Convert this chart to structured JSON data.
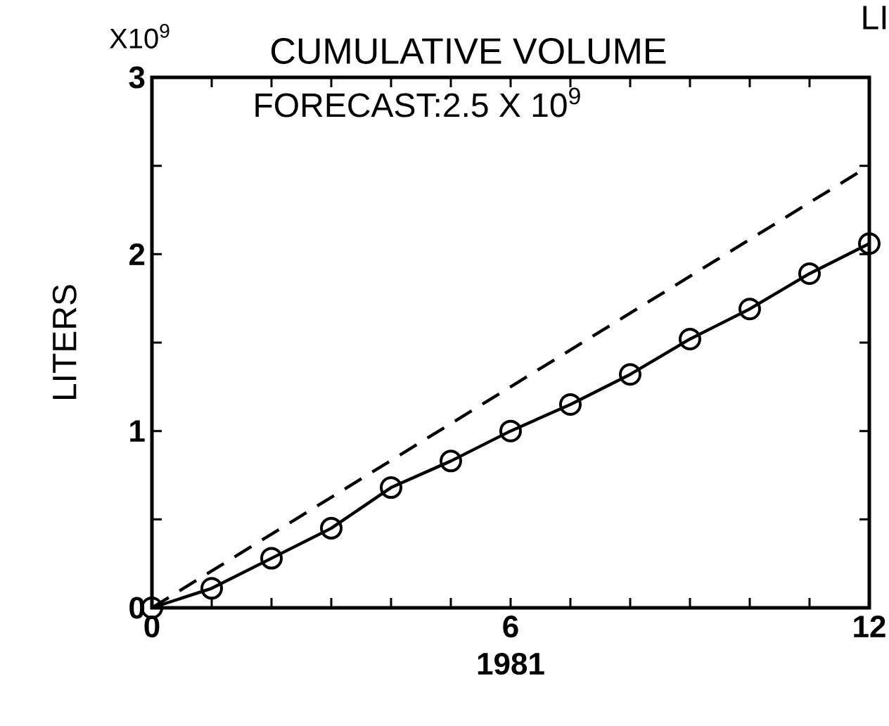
{
  "chart_data": {
    "type": "line",
    "title": "CUMULATIVE VOLUME",
    "xlabel": "1981",
    "ylabel": "LITERS",
    "annotations": [
      "X10$^{9}$",
      "FORECAST:2.5 X 10$^{9}$",
      "LI"
    ],
    "x": [
      0,
      1,
      2,
      3,
      4,
      5,
      6,
      7,
      8,
      9,
      10,
      11,
      12
    ],
    "series": [
      {
        "color": "#000000",
        "marker": "circle",
        "line_style": "solid",
        "values": [
          0,
          0.11,
          0.28,
          0.45,
          0.68,
          0.83,
          1.0,
          1.15,
          1.32,
          1.52,
          1.69,
          1.89,
          2.06
        ]
      },
      {
        "color": "#000000",
        "marker": "none",
        "line_style": "dashed",
        "x": [
          0,
          12
        ],
        "values": [
          0,
          2.5
        ]
      }
    ],
    "xlim": [
      0,
      12
    ],
    "ylim": [
      0,
      3
    ],
    "xticks": [
      0,
      {
        "value": 1,
        "label": null
      },
      {
        "value": 2,
        "label": null
      },
      {
        "value": 3,
        "label": null
      },
      {
        "value": 4,
        "label": null
      },
      {
        "value": 5,
        "label": null
      },
      6,
      {
        "value": 7,
        "label": null
      },
      {
        "value": 8,
        "label": null
      },
      {
        "value": 9,
        "label": null
      },
      {
        "value": 10,
        "label": null
      },
      {
        "value": 11,
        "label": null
      },
      12
    ],
    "yticks": [
      0,
      {
        "value": 0.5,
        "label": null
      },
      1,
      {
        "value": 1.5,
        "label": null
      },
      2,
      {
        "value": 2.5,
        "label": null
      },
      3
    ],
    "grid": false
  }
}
